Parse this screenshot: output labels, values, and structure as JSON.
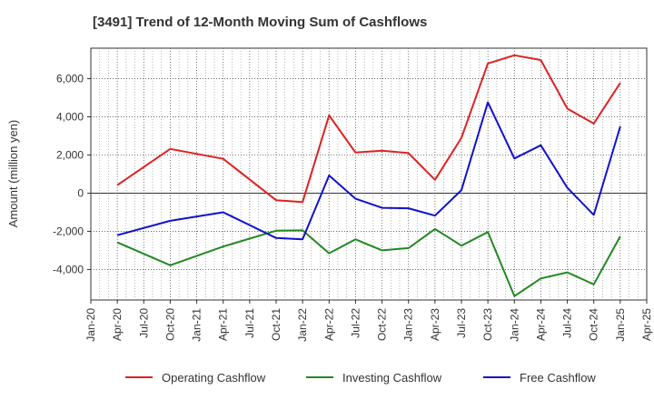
{
  "chart_data": {
    "type": "line",
    "title": "[3491]  Trend of 12-Month Moving Sum of Cashflows",
    "ylabel": "Amount (million yen)",
    "xlabel": "",
    "x_ticks": [
      "Jan-20",
      "Apr-20",
      "Jul-20",
      "Oct-20",
      "Jan-21",
      "Apr-21",
      "Jul-21",
      "Oct-21",
      "Jan-22",
      "Apr-22",
      "Jul-22",
      "Oct-22",
      "Jan-23",
      "Apr-23",
      "Jul-23",
      "Oct-23",
      "Jan-24",
      "Apr-24",
      "Jul-24",
      "Oct-24",
      "Jan-25",
      "Apr-25"
    ],
    "y_ticks": [
      "-4,000",
      "-2,000",
      "0",
      "2,000",
      "4,000",
      "6,000"
    ],
    "y_tick_values": [
      -4000,
      -2000,
      0,
      2000,
      4000,
      6000
    ],
    "ylim": [
      -5600,
      7600
    ],
    "grid": true,
    "legend_position": "bottom",
    "series": [
      {
        "name": "Operating Cashflow",
        "color": "#dd2222",
        "points": [
          [
            "Apr-20",
            420
          ],
          [
            "Oct-20",
            2320
          ],
          [
            "Apr-21",
            1800
          ],
          [
            "Oct-21",
            -370
          ],
          [
            "Jan-22",
            -470
          ],
          [
            "Apr-22",
            4080
          ],
          [
            "Jul-22",
            2130
          ],
          [
            "Oct-22",
            2230
          ],
          [
            "Jan-23",
            2100
          ],
          [
            "Apr-23",
            700
          ],
          [
            "Jul-23",
            2900
          ],
          [
            "Oct-23",
            6800
          ],
          [
            "Jan-24",
            7230
          ],
          [
            "Apr-24",
            6980
          ],
          [
            "Jul-24",
            4430
          ],
          [
            "Oct-24",
            3650
          ],
          [
            "Jan-25",
            5780
          ]
        ]
      },
      {
        "name": "Investing Cashflow",
        "color": "#228822",
        "points": [
          [
            "Apr-20",
            -2580
          ],
          [
            "Oct-20",
            -3780
          ],
          [
            "Apr-21",
            -2800
          ],
          [
            "Oct-21",
            -1970
          ],
          [
            "Jan-22",
            -1950
          ],
          [
            "Apr-22",
            -3150
          ],
          [
            "Jul-22",
            -2420
          ],
          [
            "Oct-22",
            -3000
          ],
          [
            "Jan-23",
            -2880
          ],
          [
            "Apr-23",
            -1880
          ],
          [
            "Jul-23",
            -2750
          ],
          [
            "Oct-23",
            -2040
          ],
          [
            "Jan-24",
            -5400
          ],
          [
            "Apr-24",
            -4470
          ],
          [
            "Jul-24",
            -4150
          ],
          [
            "Oct-24",
            -4780
          ],
          [
            "Jan-25",
            -2260
          ]
        ]
      },
      {
        "name": "Free Cashflow",
        "color": "#1111cc",
        "points": [
          [
            "Apr-20",
            -2200
          ],
          [
            "Oct-20",
            -1450
          ],
          [
            "Apr-21",
            -1000
          ],
          [
            "Oct-21",
            -2350
          ],
          [
            "Jan-22",
            -2420
          ],
          [
            "Apr-22",
            930
          ],
          [
            "Jul-22",
            -290
          ],
          [
            "Oct-22",
            -770
          ],
          [
            "Jan-23",
            -790
          ],
          [
            "Apr-23",
            -1180
          ],
          [
            "Jul-23",
            160
          ],
          [
            "Oct-23",
            4760
          ],
          [
            "Jan-24",
            1820
          ],
          [
            "Apr-24",
            2510
          ],
          [
            "Jul-24",
            280
          ],
          [
            "Oct-24",
            -1140
          ],
          [
            "Jan-25",
            3500
          ]
        ]
      }
    ]
  }
}
